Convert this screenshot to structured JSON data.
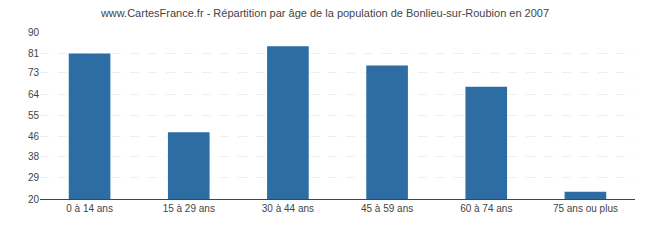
{
  "chart_data": {
    "type": "bar",
    "title": "www.CartesFrance.fr - Répartition par âge de la population de Bonlieu-sur-Roubion en 2007",
    "categories": [
      "0 à 14 ans",
      "15 à 29 ans",
      "30 à 44 ans",
      "45 à 59 ans",
      "60 à 74 ans",
      "75 ans ou plus"
    ],
    "values": [
      81,
      48,
      84,
      76,
      67,
      23
    ],
    "color": "#2e6da4",
    "ylim": [
      20,
      90
    ],
    "yticks": [
      20,
      29,
      38,
      46,
      55,
      64,
      73,
      81,
      90
    ],
    "grid": true
  }
}
